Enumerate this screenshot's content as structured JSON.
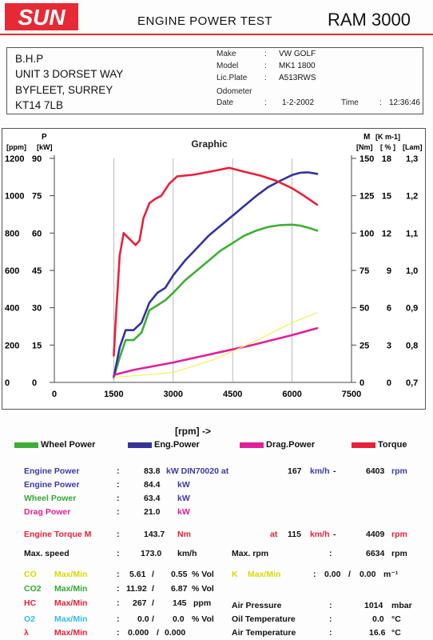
{
  "header": {
    "logo_text": "SUN",
    "title": "ENGINE POWER TEST",
    "model": "RAM 3000"
  },
  "address": [
    "B.H.P",
    "UNIT 3 DORSET WAY",
    "BYFLEET, SURREY",
    "KT14 7LB"
  ],
  "vehicle": {
    "make_label": "Make",
    "make": "VW GOLF",
    "model_label": "Model",
    "model": "MK1 1800",
    "plate_label": "Lic.Plate",
    "plate": "A513RWS",
    "odometer_label": "Odometer",
    "odometer": "",
    "date_label": "Date",
    "date": "1-2-2002",
    "time_label": "Time",
    "time": "12:36:46"
  },
  "colors": {
    "wheel": "#3dae35",
    "engine": "#33339a",
    "drag": "#e0209a",
    "torque": "#e8203a",
    "accent_blue": "#3a3aa8",
    "accent_red": "#e8203a",
    "accent_yellow": "#d8d800",
    "accent_cyan": "#33bde0",
    "accent_green": "#35a835"
  },
  "chart_data": {
    "type": "line",
    "title": "Graphic",
    "xlabel": "[rpm] ->",
    "xlim": [
      0,
      7500
    ],
    "x_ticks": [
      "0",
      "1500",
      "3000",
      "4500",
      "6000",
      "7500"
    ],
    "left_axis_units": [
      "[ppm]",
      "P",
      "[kW]"
    ],
    "left_ticks_ppm": [
      "1200",
      "1000",
      "800",
      "600",
      "400",
      "200",
      "0"
    ],
    "left_ticks_kw": [
      "90",
      "75",
      "60",
      "45",
      "30",
      "15",
      "0"
    ],
    "ylim_kw": [
      0,
      90
    ],
    "right_axis_units": [
      "M",
      "[Nm]",
      "[K m-1]",
      "[ % ]",
      "[Lam]"
    ],
    "right_ticks_nm": [
      "150",
      "125",
      "100",
      "75",
      "50",
      "25",
      "0"
    ],
    "right_ticks_pct": [
      "18",
      "15",
      "12",
      "9",
      "6",
      "3",
      "0"
    ],
    "right_ticks_lam": [
      "1,3",
      "1,2",
      "1,1",
      "1,0",
      "0,9",
      "0,8",
      "0,7"
    ],
    "series": [
      {
        "name": "Wheel Power",
        "axis": "kW",
        "color": "#3dae35",
        "x": [
          1500,
          1650,
          1800,
          2000,
          2200,
          2400,
          2600,
          2800,
          3000,
          3300,
          3600,
          3900,
          4200,
          4500,
          4800,
          5100,
          5400,
          5700,
          6000,
          6200,
          6400,
          6634
        ],
        "y": [
          2,
          10,
          17,
          17,
          20,
          29,
          31,
          33,
          36,
          41,
          45,
          49,
          53,
          56,
          59,
          61,
          62.5,
          63.2,
          63.4,
          63,
          62.2,
          61
        ]
      },
      {
        "name": "Eng.Power",
        "axis": "kW",
        "color": "#33339a",
        "x": [
          1500,
          1650,
          1800,
          2000,
          2200,
          2400,
          2600,
          2800,
          3000,
          3300,
          3600,
          3900,
          4200,
          4500,
          4800,
          5100,
          5400,
          5700,
          6000,
          6200,
          6400,
          6634
        ],
        "y": [
          2,
          14,
          21,
          21,
          24,
          32,
          36,
          38,
          43,
          49,
          54,
          59,
          63,
          67,
          71,
          75,
          78.5,
          81,
          83.3,
          84.2,
          84.4,
          83.8
        ]
      },
      {
        "name": "Drag.Power",
        "axis": "kW",
        "color": "#e0209a",
        "x": [
          1500,
          2000,
          3000,
          4000,
          5000,
          6000,
          6634
        ],
        "y": [
          3,
          5,
          8,
          11.5,
          15,
          19,
          21.8
        ]
      },
      {
        "name": "Torque",
        "axis": "Nm",
        "color": "#e8203a",
        "x": [
          1500,
          1550,
          1650,
          1750,
          1900,
          2050,
          2150,
          2250,
          2400,
          2550,
          2700,
          2900,
          3100,
          3500,
          4000,
          4409,
          4800,
          5200,
          5600,
          6000,
          6300,
          6634
        ],
        "y": [
          18,
          42,
          85,
          100,
          96,
          92,
          95,
          110,
          120,
          123,
          125,
          133,
          138,
          139,
          141.5,
          143.7,
          141,
          138.5,
          135,
          130,
          125,
          119
        ]
      },
      {
        "name": "",
        "axis": "kW",
        "color": "#f0f060",
        "x": [
          1500,
          3000,
          4000,
          5000,
          6000,
          6634
        ],
        "y": [
          2,
          4,
          9,
          16,
          24,
          28
        ]
      }
    ]
  },
  "legend": {
    "wheel": "Wheel Power",
    "engine": "Eng.Power",
    "drag": "Drag.Power",
    "torque": "Torque"
  },
  "results": {
    "ep_label": "Engine Power",
    "ep_val": "83.8",
    "ep_unit": "kW DIN70020 at",
    "ep_speed": "167",
    "ep_speed_unit": "km/h",
    "ep_dash": "-",
    "ep_rpm": "6403",
    "ep_rpm_unit": "rpm",
    "ep2_label": "Engine Power",
    "ep2_val": "84.4",
    "ep2_unit": "kW",
    "wp_label": "Wheel Power",
    "wp_val": "63.4",
    "wp_unit": "kW",
    "dp_label": "Drag Power",
    "dp_val": "21.0",
    "dp_unit": "kW",
    "et_label": "Engine Torque M",
    "et_val": "143.7",
    "et_unit": "Nm",
    "et_at": "at",
    "et_speed": "115",
    "et_speed_unit": "km/h",
    "et_dash": "-",
    "et_rpm": "4409",
    "et_rpm_unit": "rpm",
    "ms_label": "Max. speed",
    "ms_val": "173.0",
    "ms_unit": "km/h",
    "mr_label": "Max. rpm",
    "mr_val": "6634",
    "mr_unit": "rpm",
    "co_label": "CO",
    "co_mm": "Max/Min",
    "co_max": "5.61",
    "co_slash": "/",
    "co_min": "0.55",
    "co_unit": "% Vol",
    "k_label": "K",
    "k_mm": "Max/Min",
    "k_max": "0.00",
    "k_slash": "/",
    "k_min": "0.00",
    "k_unit": "m⁻¹",
    "co2_label": "CO2",
    "co2_mm": "Max/Min",
    "co2_max": "11.92",
    "co2_slash": "/",
    "co2_min": "6.87",
    "co2_unit": "% Vol",
    "hc_label": "HC",
    "hc_mm": "Max/Min",
    "hc_max": "267",
    "hc_slash": "/",
    "hc_min": "145",
    "hc_unit": "ppm",
    "ap_label": "Air Pressure",
    "ap_val": "1014",
    "ap_unit": "mbar",
    "o2_label": "O2",
    "o2_mm": "Max/Min",
    "o2_max": "0.0",
    "o2_slash": "/",
    "o2_min": "0.0",
    "o2_unit": "% Vol",
    "ot_label": "Oil Temperature",
    "ot_val": "0.0",
    "ot_unit": "°C",
    "la_label": "λ",
    "la_mm": "Max/Min",
    "la_max": "0.000",
    "la_slash": "/",
    "la_min": "0.000",
    "at_label": "Air Temperature",
    "at_val": "16.6",
    "at_unit": "°C",
    "colon": ":"
  }
}
